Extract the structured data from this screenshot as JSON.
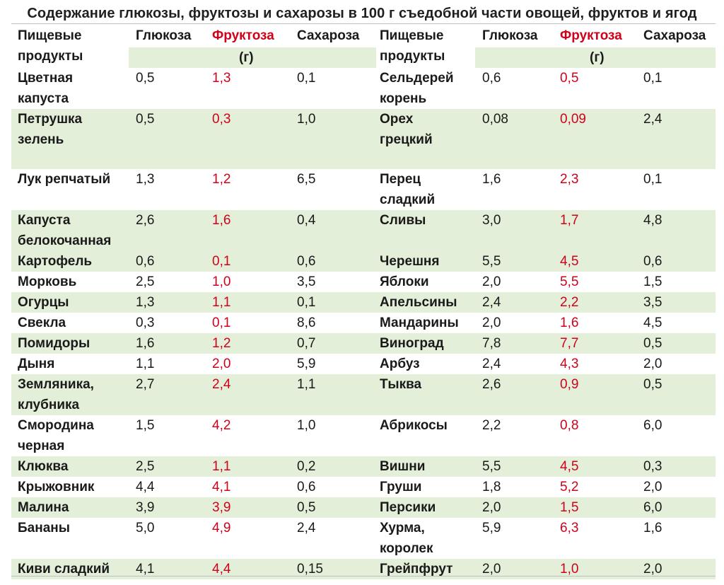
{
  "title": "Содержание глюкозы, фруктозы и сахарозы в 100 г съедобной части овощей, фруктов и ягод",
  "header": {
    "food_line1": "Пищевые",
    "food_line2": "продукты",
    "glucose": "Глюкоза",
    "fructose": "Фруктоза",
    "sucrose": "Сахароза",
    "unit": "(г)"
  },
  "colors": {
    "band": "#e3efd9",
    "fructose": "#d0021b"
  },
  "rows": [
    {
      "left": {
        "name": [
          "Цветная",
          "капуста"
        ],
        "glucose": "0,5",
        "fructose": "1,3",
        "sucrose": "0,1"
      },
      "right": {
        "name": [
          "Сельдерей",
          "корень"
        ],
        "glucose": "0,6",
        "fructose": "0,5",
        "sucrose": "0,1"
      }
    },
    {
      "left": {
        "name": [
          "Петрушка",
          "зелень"
        ],
        "glucose": "0,5",
        "fructose": "0,3",
        "sucrose": "1,0"
      },
      "right": {
        "name": [
          "Орех",
          "грецкий"
        ],
        "glucose": "0,08",
        "fructose": "0,09",
        "sucrose": "2,4"
      }
    },
    {
      "left": {
        "name": [
          "Лук репчатый"
        ],
        "glucose": "1,3",
        "fructose": "1,2",
        "sucrose": "6,5"
      },
      "right": {
        "name": [
          "Перец",
          "сладкий"
        ],
        "glucose": "1,6",
        "fructose": "2,3",
        "sucrose": "0,1"
      }
    },
    {
      "left": {
        "name": [
          "Капуста",
          "белокочанная"
        ],
        "glucose": "2,6",
        "fructose": "1,6",
        "sucrose": "0,4"
      },
      "right": {
        "name": [
          "Сливы"
        ],
        "glucose": "3,0",
        "fructose": "1,7",
        "sucrose": "4,8"
      }
    },
    {
      "left": {
        "name": [
          "Картофель"
        ],
        "glucose": "0,6",
        "fructose": "0,1",
        "sucrose": "0,6"
      },
      "right": {
        "name": [
          "Черешня"
        ],
        "glucose": "5,5",
        "fructose": "4,5",
        "sucrose": "0,6"
      }
    },
    {
      "left": {
        "name": [
          "Морковь"
        ],
        "glucose": "2,5",
        "fructose": "1,0",
        "sucrose": "3,5"
      },
      "right": {
        "name": [
          "Яблоки"
        ],
        "glucose": "2,0",
        "fructose": "5,5",
        "sucrose": "1,5"
      }
    },
    {
      "left": {
        "name": [
          "Огурцы"
        ],
        "glucose": "1,3",
        "fructose": "1,1",
        "sucrose": "0,1"
      },
      "right": {
        "name": [
          "Апельсины"
        ],
        "glucose": "2,4",
        "fructose": "2,2",
        "sucrose": "3,5"
      }
    },
    {
      "left": {
        "name": [
          "Свекла"
        ],
        "glucose": "0,3",
        "fructose": "0,1",
        "sucrose": "8,6"
      },
      "right": {
        "name": [
          "Мандарины"
        ],
        "glucose": "2,0",
        "fructose": "1,6",
        "sucrose": "4,5"
      }
    },
    {
      "left": {
        "name": [
          "Помидоры"
        ],
        "glucose": "1,6",
        "fructose": "1,2",
        "sucrose": "0,7"
      },
      "right": {
        "name": [
          "Виноград"
        ],
        "glucose": "7,8",
        "fructose": "7,7",
        "sucrose": "0,5"
      }
    },
    {
      "left": {
        "name": [
          "Дыня"
        ],
        "glucose": "1,1",
        "fructose": "2,0",
        "sucrose": "5,9"
      },
      "right": {
        "name": [
          "Арбуз"
        ],
        "glucose": "2,4",
        "fructose": "4,3",
        "sucrose": "2,0"
      }
    },
    {
      "left": {
        "name": [
          "Земляника,",
          "клубника"
        ],
        "glucose": "2,7",
        "fructose": "2,4",
        "sucrose": "1,1"
      },
      "right": {
        "name": [
          "Тыква"
        ],
        "glucose": "2,6",
        "fructose": "0,9",
        "sucrose": "0,5"
      }
    },
    {
      "left": {
        "name": [
          "Смородина",
          "черная"
        ],
        "glucose": "1,5",
        "fructose": "4,2",
        "sucrose": "1,0"
      },
      "right": {
        "name": [
          "Абрикосы"
        ],
        "glucose": "2,2",
        "fructose": "0,8",
        "sucrose": "6,0"
      }
    },
    {
      "left": {
        "name": [
          "Клюква"
        ],
        "glucose": "2,5",
        "fructose": "1,1",
        "sucrose": "0,2"
      },
      "right": {
        "name": [
          "Вишни"
        ],
        "glucose": "5,5",
        "fructose": "4,5",
        "sucrose": "0,3"
      }
    },
    {
      "left": {
        "name": [
          "Крыжовник"
        ],
        "glucose": "4,4",
        "fructose": "4,1",
        "sucrose": "0,6"
      },
      "right": {
        "name": [
          "Груши"
        ],
        "glucose": "1,8",
        "fructose": "5,2",
        "sucrose": "2,0"
      }
    },
    {
      "left": {
        "name": [
          "Малина"
        ],
        "glucose": "3,9",
        "fructose": "3,9",
        "sucrose": "0,5"
      },
      "right": {
        "name": [
          "Персики"
        ],
        "glucose": "2,0",
        "fructose": "1,5",
        "sucrose": "6,0"
      }
    },
    {
      "left": {
        "name": [
          "Бананы"
        ],
        "glucose": "5,0",
        "fructose": "4,9",
        "sucrose": "2,4"
      },
      "right": {
        "name": [
          "Хурма,",
          "королек"
        ],
        "glucose": "5,9",
        "fructose": "6,3",
        "sucrose": "1,6"
      }
    },
    {
      "left": {
        "name": [
          "Киви сладкий"
        ],
        "glucose": "4,1",
        "fructose": "4,4",
        "sucrose": "0,15"
      },
      "right": {
        "name": [
          "Грейпфрут"
        ],
        "glucose": "2,0",
        "fructose": "1,0",
        "sucrose": "2,0"
      }
    }
  ]
}
